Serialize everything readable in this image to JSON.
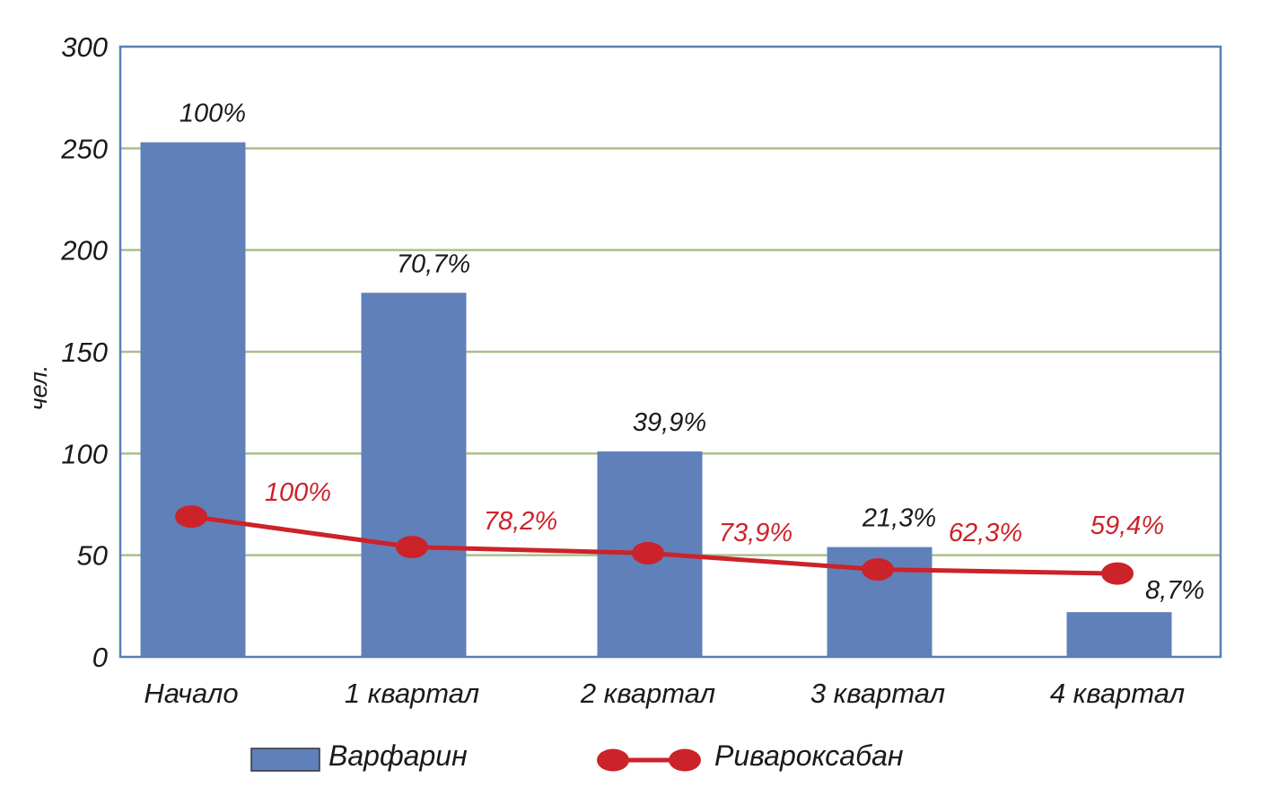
{
  "chart_data": {
    "type": "bar",
    "categories": [
      "Начало",
      "1 квартал",
      "2 квартал",
      "3 квартал",
      "4 квартал"
    ],
    "ylabel": "чел.",
    "ylim": [
      0,
      300
    ],
    "yticks": [
      0,
      50,
      100,
      150,
      200,
      250,
      300
    ],
    "grid": true,
    "legend_position": "bottom",
    "series": [
      {
        "name": "Варфарин",
        "kind": "bar",
        "color": "#6080BA",
        "values": [
          253,
          179,
          101,
          54,
          22
        ],
        "labels": [
          "100%",
          "70,7%",
          "39,9%",
          "21,3%",
          "8,7%"
        ],
        "label_color": "#1a1a1a"
      },
      {
        "name": "Ривароксабан",
        "kind": "line",
        "color": "#CC2229",
        "values": [
          69,
          54,
          51,
          43,
          41
        ],
        "labels": [
          "100%",
          "78,2%",
          "73,9%",
          "62,3%",
          "59,4%"
        ],
        "label_color": "#CC2229"
      }
    ],
    "plot_border_color": "#5B7DB5",
    "grid_color": "#A9C08A"
  }
}
